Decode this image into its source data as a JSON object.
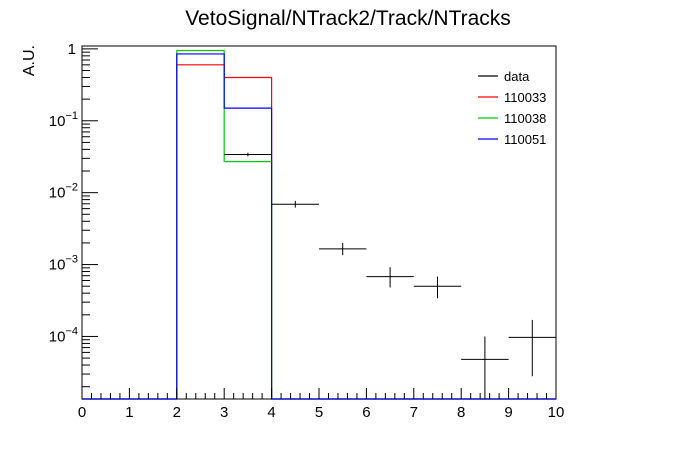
{
  "chart_data": {
    "type": "histogram",
    "title": "VetoSignal/NTrack2/Track/NTracks",
    "ylabel": "A.U.",
    "xlabel": "",
    "xlim": [
      0,
      10
    ],
    "ylim_log10": [
      -4.87,
      0.04
    ],
    "yscale": "log",
    "x_ticks": [
      "0",
      "1",
      "2",
      "3",
      "4",
      "5",
      "6",
      "7",
      "8",
      "9",
      "10"
    ],
    "y_ticks": [
      {
        "value": 1,
        "base": "1",
        "exp": ""
      },
      {
        "value": 0.1,
        "base": "10",
        "exp": "−1"
      },
      {
        "value": 0.01,
        "base": "10",
        "exp": "−2"
      },
      {
        "value": 0.001,
        "base": "10",
        "exp": "−3"
      },
      {
        "value": 0.0001,
        "base": "10",
        "exp": "−4"
      }
    ],
    "bin_edges": [
      0,
      1,
      2,
      3,
      4,
      5,
      6,
      7,
      8,
      9,
      10
    ],
    "legend_position": "top-right",
    "series": [
      {
        "name": "data",
        "color": "#000000",
        "style": "points",
        "points": [
          {
            "x": 3.5,
            "y": 0.034,
            "ylo": 0.032,
            "yhi": 0.036
          },
          {
            "x": 4.5,
            "y": 0.0069,
            "ylo": 0.0062,
            "yhi": 0.0077
          },
          {
            "x": 5.5,
            "y": 0.00165,
            "ylo": 0.00135,
            "yhi": 0.002
          },
          {
            "x": 6.5,
            "y": 0.00068,
            "ylo": 0.00048,
            "yhi": 0.00092
          },
          {
            "x": 7.5,
            "y": 0.0005,
            "ylo": 0.00034,
            "yhi": 0.00068
          },
          {
            "x": 8.5,
            "y": 4.8e-05,
            "ylo": 1.3e-05,
            "yhi": 0.0001
          },
          {
            "x": 9.5,
            "y": 9.7e-05,
            "ylo": 2.8e-05,
            "yhi": 0.00017
          }
        ]
      },
      {
        "name": "110033",
        "color": "#ff0000",
        "style": "hist",
        "values": [
          0,
          0,
          0.6,
          0.4,
          0,
          0,
          0,
          0,
          0,
          0
        ]
      },
      {
        "name": "110038",
        "color": "#00cc00",
        "style": "hist",
        "values": [
          0,
          0,
          0.95,
          0.027,
          0,
          0,
          0,
          0,
          0,
          0
        ]
      },
      {
        "name": "110051",
        "color": "#0000ff",
        "style": "hist",
        "values": [
          0,
          0,
          0.85,
          0.15,
          0,
          0,
          0,
          0,
          0,
          0
        ]
      }
    ]
  }
}
